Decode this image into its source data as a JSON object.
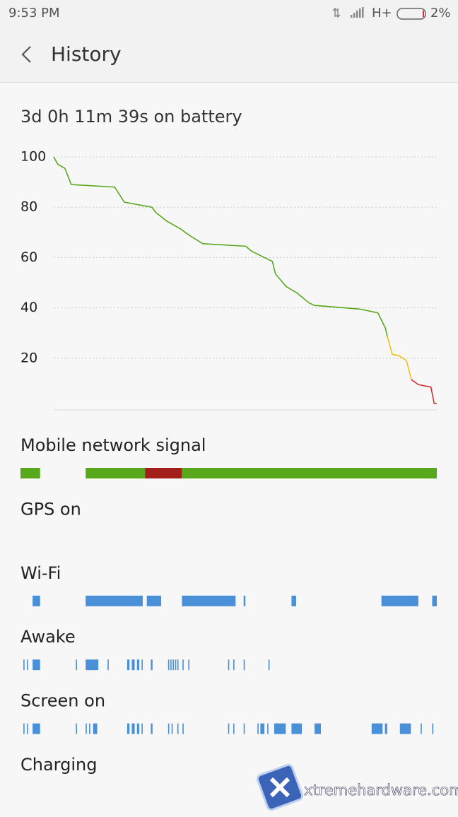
{
  "status": {
    "time": "9:53 PM",
    "network": "H+",
    "battery": "2%"
  },
  "header": {
    "title": "History"
  },
  "summary": "3d 0h 11m 39s on battery",
  "chart_data": {
    "type": "line",
    "x": [
      0,
      0.8,
      2.1,
      3.3,
      11.5,
      13.3,
      18.5,
      19.2,
      21.3,
      23.8,
      25.8,
      28.1,
      36.2,
      37.3,
      40.2,
      41.2,
      41.8,
      43.8,
      45.8,
      48.1,
      49.1,
      57.8,
      61.1,
      62.5,
      62.9,
      63.8,
      65.1,
      66.5,
      67.4,
      68.7,
      71.1,
      71.7,
      72.2
    ],
    "series": [
      {
        "color": "#58a81c",
        "values": [
          100,
          97,
          95.5,
          89,
          88,
          82,
          80,
          78,
          74.5,
          71.5,
          68.5,
          65.5,
          64.5,
          62.5,
          59.5,
          58.5,
          53.5,
          48.5,
          46,
          42,
          41,
          39.5,
          38,
          32,
          28.5,
          null,
          null,
          null,
          null,
          null,
          null,
          null,
          null
        ]
      },
      {
        "color": "#f2c114",
        "values": [
          null,
          null,
          null,
          null,
          null,
          null,
          null,
          null,
          null,
          null,
          null,
          null,
          null,
          null,
          null,
          null,
          null,
          null,
          null,
          null,
          null,
          null,
          null,
          null,
          28.5,
          21.5,
          21,
          19,
          11.5,
          null,
          null,
          null,
          null
        ]
      },
      {
        "color": "#d32f2f",
        "values": [
          null,
          null,
          null,
          null,
          null,
          null,
          null,
          null,
          null,
          null,
          null,
          null,
          null,
          null,
          null,
          null,
          null,
          null,
          null,
          null,
          null,
          null,
          null,
          null,
          null,
          null,
          null,
          null,
          11.5,
          9.5,
          8.5,
          2,
          2
        ]
      }
    ],
    "xlim": [
      0,
      72.2
    ],
    "ylim": [
      0,
      100
    ],
    "yticks": [
      20,
      40,
      60,
      80,
      100
    ],
    "grid": true
  },
  "timeline": {
    "xlim": [
      0,
      72.2
    ],
    "tracks": [
      {
        "label": "Mobile network signal",
        "intervals": [
          [
            0,
            3.4
          ],
          [
            11.3,
            21.6
          ],
          [
            21.6,
            28.0
          ],
          [
            28.0,
            72.2
          ]
        ],
        "colors": [
          "#58a81c",
          "#58a81c",
          "#a3201a",
          "#58a81c"
        ]
      },
      {
        "label": "GPS on",
        "color": "#4a90d9",
        "intervals": []
      },
      {
        "label": "Wi-Fi",
        "color": "#4a90d9",
        "intervals": [
          [
            2.1,
            3.4
          ],
          [
            11.3,
            21.2
          ],
          [
            21.9,
            24.4
          ],
          [
            28.0,
            37.3
          ],
          [
            38.7,
            39.0
          ],
          [
            47.0,
            47.8
          ],
          [
            62.6,
            69.0
          ],
          [
            71.4,
            72.2
          ]
        ]
      },
      {
        "label": "Awake",
        "color": "#4a90d9",
        "intervals": [
          [
            0.5,
            0.7
          ],
          [
            1.1,
            1.3
          ],
          [
            2.1,
            3.4
          ],
          [
            9.6,
            9.8
          ],
          [
            11.3,
            13.5
          ],
          [
            15.1,
            15.3
          ],
          [
            18.5,
            18.9
          ],
          [
            19.3,
            19.8
          ],
          [
            20.2,
            20.6
          ],
          [
            21.0,
            21.2
          ],
          [
            22.6,
            22.9
          ],
          [
            25.6,
            25.8
          ],
          [
            26.0,
            26.2
          ],
          [
            26.4,
            26.6
          ],
          [
            26.8,
            27.0
          ],
          [
            27.2,
            27.4
          ],
          [
            28.1,
            28.3
          ],
          [
            29.1,
            29.3
          ],
          [
            36.0,
            36.2
          ],
          [
            36.9,
            37.1
          ],
          [
            38.7,
            38.9
          ],
          [
            43.0,
            43.2
          ]
        ]
      },
      {
        "label": "Screen on",
        "color": "#4a90d9",
        "intervals": [
          [
            0.5,
            0.7
          ],
          [
            1.1,
            1.3
          ],
          [
            2.1,
            3.4
          ],
          [
            9.6,
            9.8
          ],
          [
            11.3,
            11.5
          ],
          [
            11.9,
            12.1
          ],
          [
            12.6,
            13.3
          ],
          [
            18.5,
            18.9
          ],
          [
            19.3,
            19.8
          ],
          [
            20.2,
            20.6
          ],
          [
            21.0,
            21.2
          ],
          [
            22.6,
            22.9
          ],
          [
            25.6,
            25.8
          ],
          [
            26.2,
            26.4
          ],
          [
            27.2,
            27.4
          ],
          [
            28.1,
            28.3
          ],
          [
            36.0,
            36.2
          ],
          [
            36.9,
            37.1
          ],
          [
            38.7,
            38.9
          ],
          [
            41.1,
            41.3
          ],
          [
            41.6,
            42.3
          ],
          [
            42.8,
            43.0
          ],
          [
            44.0,
            46.0
          ],
          [
            47.0,
            48.8
          ],
          [
            51.0,
            52.1
          ],
          [
            60.9,
            62.8
          ],
          [
            63.2,
            63.6
          ],
          [
            65.8,
            67.7
          ],
          [
            69.4,
            69.6
          ],
          [
            71.4,
            71.6
          ]
        ]
      },
      {
        "label": "Charging",
        "color": "#4a90d9",
        "intervals": []
      }
    ]
  },
  "watermark": "xtremehardware.com"
}
